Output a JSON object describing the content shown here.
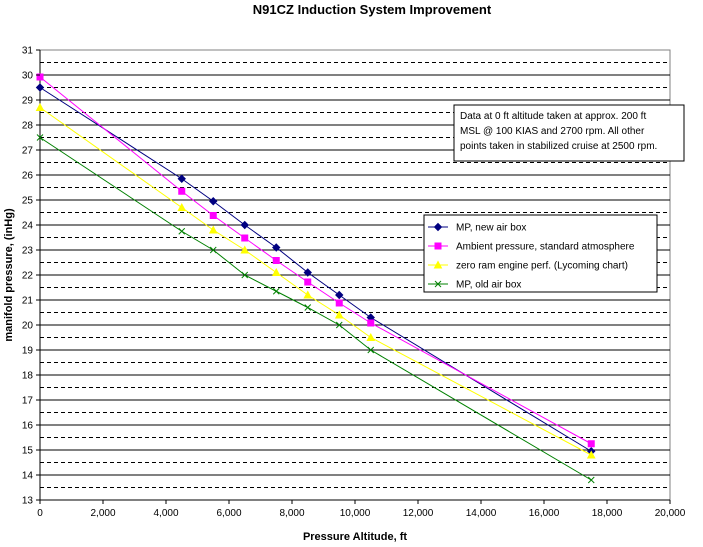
{
  "chart_data": {
    "type": "line",
    "title": "N91CZ Induction System Improvement",
    "xlabel": "Pressure Altitude, ft",
    "ylabel": "manifold pressure, (inHg)",
    "xlim": [
      0,
      20000
    ],
    "ylim": [
      13,
      31
    ],
    "x_ticks": [
      "0",
      "2,000",
      "4,000",
      "6,000",
      "8,000",
      "10,000",
      "12,000",
      "14,000",
      "16,000",
      "18,000",
      "20,000"
    ],
    "y_ticks": [
      "13",
      "14",
      "15",
      "16",
      "17",
      "18",
      "19",
      "20",
      "21",
      "22",
      "23",
      "24",
      "25",
      "26",
      "27",
      "28",
      "29",
      "30",
      "31"
    ],
    "annotation": {
      "lines": [
        "Data at 0 ft altitude taken at approx. 200 ft",
        "MSL @ 100 KIAS and 2700 rpm.  All other",
        "points taken in stabilized cruise at 2500 rpm."
      ]
    },
    "series": [
      {
        "name": "MP, new air box",
        "color": "#000080",
        "marker": "diamond",
        "x": [
          0,
          4500,
          5500,
          6500,
          7500,
          8500,
          9500,
          10500,
          17500
        ],
        "y": [
          29.5,
          25.85,
          24.95,
          24.0,
          23.1,
          22.1,
          21.2,
          20.3,
          14.95
        ]
      },
      {
        "name": "Ambient pressure, standard atmosphere",
        "color": "#ff00ff",
        "marker": "square",
        "x": [
          0,
          4500,
          5500,
          6500,
          7500,
          8500,
          9500,
          10500,
          17500
        ],
        "y": [
          29.92,
          25.35,
          24.38,
          23.48,
          22.58,
          21.72,
          20.88,
          20.08,
          15.25
        ]
      },
      {
        "name": "zero ram engine perf. (Lycoming chart)",
        "color": "#ffff00",
        "marker": "triangle",
        "x": [
          0,
          4500,
          5500,
          6500,
          7500,
          8500,
          9500,
          10500,
          17500
        ],
        "y": [
          28.7,
          24.7,
          23.8,
          23.0,
          22.1,
          21.2,
          20.4,
          19.5,
          14.8
        ]
      },
      {
        "name": "MP, old air box",
        "color": "#008000",
        "marker": "x",
        "x": [
          0,
          4500,
          5500,
          6500,
          7500,
          8500,
          9500,
          10500,
          17500
        ],
        "y": [
          27.5,
          23.75,
          23.0,
          22.0,
          21.35,
          20.7,
          20.0,
          19.0,
          13.8
        ]
      }
    ]
  }
}
